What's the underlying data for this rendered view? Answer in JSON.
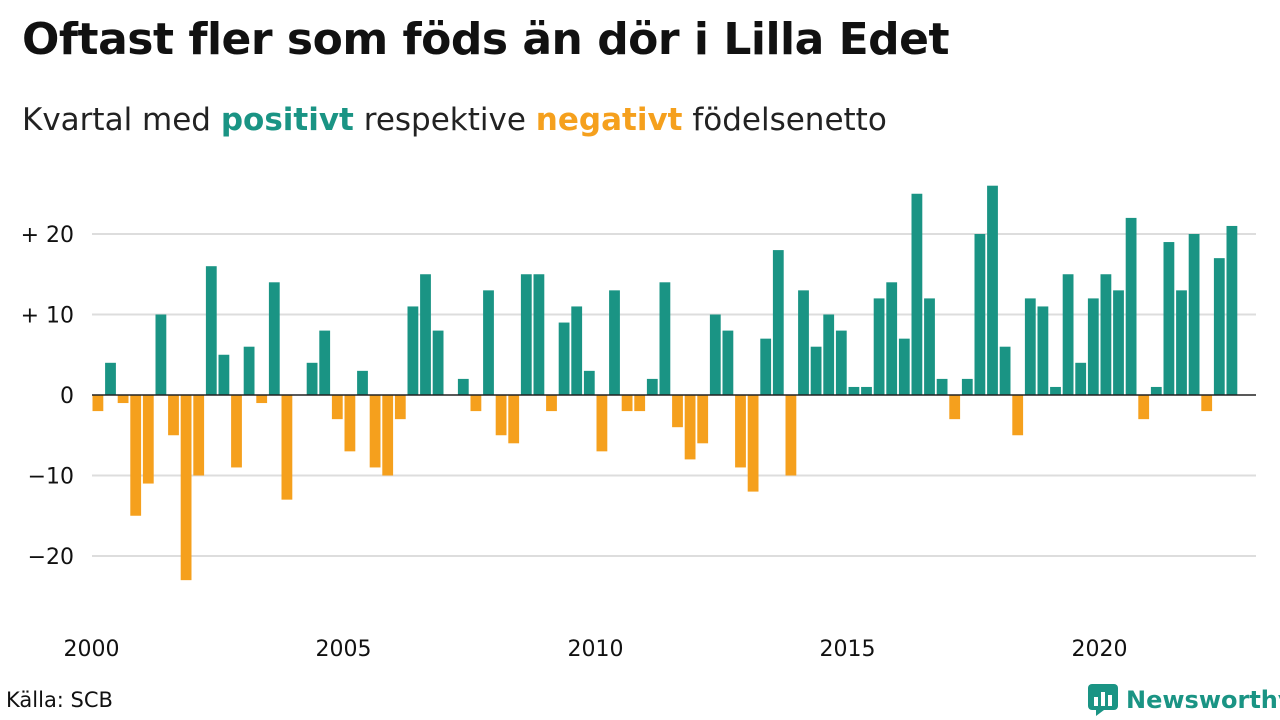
{
  "title": "Oftast fler som föds än dör i Lilla Edet",
  "subtitle": {
    "prefix": "Kvartal med",
    "positive": "positivt",
    "middle": "respektive",
    "negative": "negativt",
    "suffix": "födelsenetto"
  },
  "source": "Källa: SCB",
  "brand": {
    "name": "Newsworthy",
    "icon": "newsworthy-logo-icon"
  },
  "colors": {
    "positive": "#1a9484",
    "negative": "#f5a01d",
    "grid": "#dddddd",
    "axis": "#222222"
  },
  "chart_data": {
    "type": "bar",
    "x_start_year": 2000,
    "x_unit": "quarter",
    "ylim": [
      -25,
      27
    ],
    "y_ticks": [
      {
        "value": 20,
        "label": "+ 20"
      },
      {
        "value": 10,
        "label": "+ 10"
      },
      {
        "value": 0,
        "label": "0"
      },
      {
        "value": -10,
        "label": "−10"
      },
      {
        "value": -20,
        "label": "−20"
      }
    ],
    "x_ticks": [
      "2000",
      "2005",
      "2010",
      "2015",
      "2020"
    ],
    "grid": true,
    "values": [
      -2,
      4,
      -1,
      -15,
      -11,
      10,
      -5,
      -23,
      -10,
      16,
      5,
      -9,
      6,
      -1,
      14,
      -13,
      0,
      4,
      8,
      -3,
      -7,
      3,
      -9,
      -10,
      -3,
      11,
      15,
      8,
      0,
      2,
      -2,
      13,
      -5,
      -6,
      15,
      15,
      -2,
      9,
      11,
      3,
      -7,
      13,
      -2,
      -2,
      2,
      14,
      -4,
      -8,
      -6,
      10,
      8,
      -9,
      -12,
      7,
      18,
      -10,
      13,
      6,
      10,
      8,
      1,
      1,
      12,
      14,
      7,
      25,
      12,
      2,
      -3,
      2,
      20,
      26,
      6,
      -5,
      12,
      11,
      1,
      15,
      4,
      12,
      15,
      13,
      22,
      -3,
      1,
      19,
      13,
      20,
      -2,
      17,
      21
    ]
  }
}
